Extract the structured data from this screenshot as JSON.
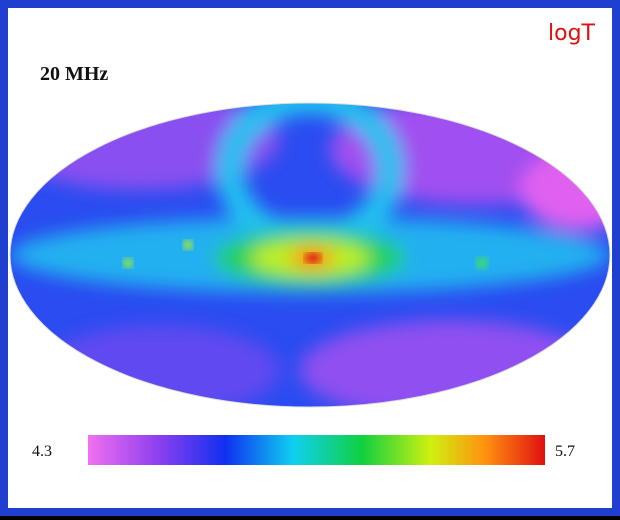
{
  "label": "logT",
  "frequency": "20 MHz",
  "colorbar": {
    "min": 4.3,
    "max": 5.7
  }
}
